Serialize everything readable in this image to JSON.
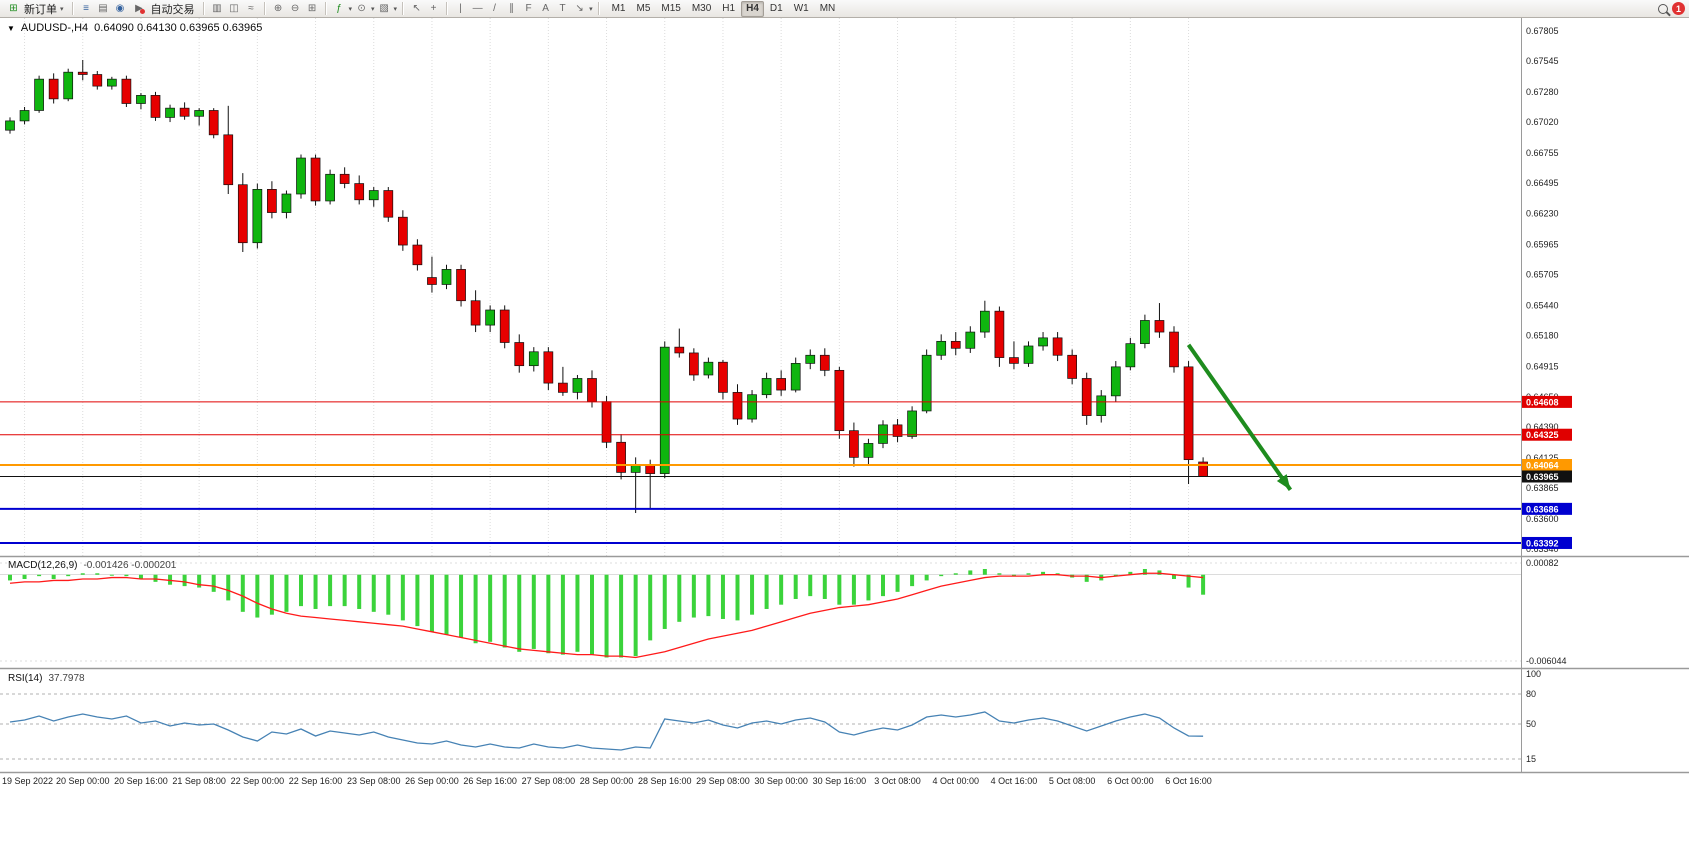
{
  "toolbar": {
    "new_order_label": "新订单",
    "autotrading_label": "自动交易",
    "timeframes": [
      "M1",
      "M5",
      "M15",
      "M30",
      "H1",
      "H4",
      "D1",
      "W1",
      "MN"
    ],
    "active_timeframe": "H4",
    "notification_badge": "1"
  },
  "icons": {
    "collapse": "▼",
    "caret": "▾",
    "new_order": "⊞",
    "market_watch": "≡",
    "navigator": "▤",
    "sound": "◉",
    "autotrading": "▶",
    "bar_chart": "▥",
    "candle_chart": "◫",
    "line_chart": "≈",
    "zoom_in": "⊕",
    "zoom_out": "⊖",
    "tile_windows": "⊞",
    "indicators": "ƒ",
    "periods_clock": "⊙",
    "templates": "▧",
    "cursor": "↖",
    "crosshair": "+",
    "vertical_line": "|",
    "horizontal_line": "—",
    "trendline": "/",
    "channel": "∥",
    "fibonacci": "F",
    "text_tool": "A",
    "label_tool": "T",
    "arrows_tool": "↘"
  },
  "chart_data": [
    {
      "type": "candlestick",
      "title": "AUDUSD-,H4",
      "ohlc_text": "0.64090 0.64130 0.63965 0.63965",
      "up_color": "#0fb50f",
      "down_color": "#e60000",
      "y_range": {
        "top": 0.67805,
        "bottom": 0.6334
      },
      "y_ticks": [
        "0.67805",
        "0.67545",
        "0.67280",
        "0.67020",
        "0.66755",
        "0.66495",
        "0.66230",
        "0.65965",
        "0.65705",
        "0.65440",
        "0.65180",
        "0.64915",
        "0.64650",
        "0.64390",
        "0.64125",
        "0.63865",
        "0.63600",
        "0.63340"
      ],
      "x_labels": [
        "19 Sep 2022",
        "20 Sep 00:00",
        "20 Sep 16:00",
        "21 Sep 08:00",
        "22 Sep 00:00",
        "22 Sep 16:00",
        "23 Sep 08:00",
        "26 Sep 00:00",
        "26 Sep 16:00",
        "27 Sep 08:00",
        "28 Sep 00:00",
        "28 Sep 16:00",
        "29 Sep 08:00",
        "30 Sep 00:00",
        "30 Sep 16:00",
        "3 Oct 08:00",
        "4 Oct 00:00",
        "4 Oct 16:00",
        "5 Oct 08:00",
        "6 Oct 00:00",
        "6 Oct 16:00"
      ],
      "x_label_indices": [
        1,
        5,
        9,
        13,
        17,
        21,
        25,
        29,
        33,
        37,
        41,
        45,
        49,
        53,
        57,
        61,
        65,
        69,
        73,
        77,
        81
      ],
      "levels": [
        {
          "price": "0.64608",
          "color": "#e00000",
          "width": 1
        },
        {
          "price": "0.64325",
          "color": "#e00000",
          "width": 1
        },
        {
          "price": "0.64064",
          "color": "#ff9900",
          "width": 2
        },
        {
          "price": "0.63965",
          "color": "#111111",
          "width": 1
        },
        {
          "price": "0.63686",
          "color": "#0000d0",
          "width": 2
        },
        {
          "price": "0.63392",
          "color": "#0000d0",
          "width": 2
        }
      ],
      "arrow": {
        "from_index": 81,
        "from_price": 0.651,
        "to_index": 88,
        "to_price": 0.6385,
        "color": "#1e8c1e"
      },
      "candles": [
        [
          0.6695,
          0.6706,
          0.6692,
          0.6703
        ],
        [
          0.6703,
          0.6715,
          0.67,
          0.6712
        ],
        [
          0.6712,
          0.6742,
          0.671,
          0.6739
        ],
        [
          0.6739,
          0.6744,
          0.6718,
          0.6722
        ],
        [
          0.6722,
          0.6748,
          0.672,
          0.6745
        ],
        [
          0.6745,
          0.67555,
          0.6738,
          0.6743
        ],
        [
          0.6743,
          0.6746,
          0.673,
          0.6733
        ],
        [
          0.6733,
          0.6741,
          0.673,
          0.6739
        ],
        [
          0.6739,
          0.6742,
          0.6715,
          0.6718
        ],
        [
          0.6718,
          0.6727,
          0.6713,
          0.6725
        ],
        [
          0.6725,
          0.6728,
          0.6703,
          0.6706
        ],
        [
          0.6706,
          0.6717,
          0.6702,
          0.6714
        ],
        [
          0.6714,
          0.6719,
          0.6704,
          0.6707
        ],
        [
          0.6707,
          0.6714,
          0.6699,
          0.6712
        ],
        [
          0.6712,
          0.6714,
          0.6688,
          0.6691
        ],
        [
          0.6691,
          0.6716,
          0.664,
          0.6648
        ],
        [
          0.6648,
          0.6658,
          0.659,
          0.6598
        ],
        [
          0.6598,
          0.6649,
          0.6593,
          0.6644
        ],
        [
          0.6644,
          0.6651,
          0.6619,
          0.6624
        ],
        [
          0.6624,
          0.6643,
          0.6619,
          0.664
        ],
        [
          0.664,
          0.6674,
          0.6636,
          0.6671
        ],
        [
          0.6671,
          0.6674,
          0.663,
          0.6634
        ],
        [
          0.6634,
          0.6661,
          0.6631,
          0.6657
        ],
        [
          0.6657,
          0.6663,
          0.6645,
          0.6649
        ],
        [
          0.6649,
          0.6656,
          0.6631,
          0.6635
        ],
        [
          0.6635,
          0.6646,
          0.6629,
          0.6643
        ],
        [
          0.6643,
          0.6646,
          0.6616,
          0.662
        ],
        [
          0.662,
          0.6626,
          0.6591,
          0.6596
        ],
        [
          0.6596,
          0.6601,
          0.6574,
          0.6579
        ],
        [
          0.6568,
          0.6586,
          0.6555,
          0.6562
        ],
        [
          0.6562,
          0.6579,
          0.6558,
          0.6575
        ],
        [
          0.6575,
          0.6579,
          0.6543,
          0.6548
        ],
        [
          0.6548,
          0.6557,
          0.6521,
          0.6527
        ],
        [
          0.6527,
          0.6544,
          0.6521,
          0.654
        ],
        [
          0.654,
          0.6544,
          0.6507,
          0.6512
        ],
        [
          0.6512,
          0.6519,
          0.6486,
          0.6492
        ],
        [
          0.6492,
          0.6508,
          0.6487,
          0.6504
        ],
        [
          0.6504,
          0.6508,
          0.6471,
          0.6477
        ],
        [
          0.6477,
          0.6491,
          0.6466,
          0.6469
        ],
        [
          0.6469,
          0.6484,
          0.6463,
          0.6481
        ],
        [
          0.6481,
          0.6488,
          0.6456,
          0.6461
        ],
        [
          0.6461,
          0.6466,
          0.6421,
          0.6426
        ],
        [
          0.6426,
          0.6433,
          0.6394,
          0.64
        ],
        [
          0.64,
          0.6413,
          0.6365,
          0.6406
        ],
        [
          0.6406,
          0.6411,
          0.6368,
          0.6399
        ],
        [
          0.6399,
          0.6513,
          0.6395,
          0.6508
        ],
        [
          0.6508,
          0.6524,
          0.6499,
          0.6503
        ],
        [
          0.6503,
          0.6507,
          0.6479,
          0.6484
        ],
        [
          0.6484,
          0.6499,
          0.6481,
          0.6495
        ],
        [
          0.6495,
          0.6497,
          0.6463,
          0.6469
        ],
        [
          0.6469,
          0.6476,
          0.6441,
          0.6446
        ],
        [
          0.6446,
          0.6471,
          0.6443,
          0.6467
        ],
        [
          0.6467,
          0.6486,
          0.6464,
          0.6481
        ],
        [
          0.6481,
          0.6488,
          0.6466,
          0.6471
        ],
        [
          0.6471,
          0.6499,
          0.6469,
          0.6494
        ],
        [
          0.6494,
          0.6506,
          0.6489,
          0.6501
        ],
        [
          0.6501,
          0.6507,
          0.6483,
          0.6488
        ],
        [
          0.6488,
          0.6491,
          0.6429,
          0.6436
        ],
        [
          0.6436,
          0.6443,
          0.6405,
          0.6413
        ],
        [
          0.6413,
          0.6429,
          0.6407,
          0.6425
        ],
        [
          0.6425,
          0.6445,
          0.6421,
          0.6441
        ],
        [
          0.6441,
          0.6446,
          0.6426,
          0.6431
        ],
        [
          0.6431,
          0.6457,
          0.6429,
          0.6453
        ],
        [
          0.6453,
          0.6506,
          0.6451,
          0.6501
        ],
        [
          0.6501,
          0.6519,
          0.6497,
          0.6513
        ],
        [
          0.6513,
          0.6521,
          0.6501,
          0.6507
        ],
        [
          0.6507,
          0.6526,
          0.6503,
          0.6521
        ],
        [
          0.6521,
          0.6548,
          0.6516,
          0.6539
        ],
        [
          0.6539,
          0.6543,
          0.6491,
          0.6499
        ],
        [
          0.6499,
          0.6513,
          0.6489,
          0.6494
        ],
        [
          0.6494,
          0.6513,
          0.6491,
          0.6509
        ],
        [
          0.6509,
          0.6521,
          0.6505,
          0.6516
        ],
        [
          0.6516,
          0.6521,
          0.6496,
          0.6501
        ],
        [
          0.6501,
          0.6506,
          0.6476,
          0.6481
        ],
        [
          0.6481,
          0.6486,
          0.6441,
          0.6449
        ],
        [
          0.6449,
          0.6471,
          0.6443,
          0.6466
        ],
        [
          0.6466,
          0.6496,
          0.6461,
          0.6491
        ],
        [
          0.6491,
          0.6516,
          0.6488,
          0.6511
        ],
        [
          0.6511,
          0.6536,
          0.6507,
          0.6531
        ],
        [
          0.6531,
          0.6546,
          0.6516,
          0.6521
        ],
        [
          0.6521,
          0.6526,
          0.6486,
          0.6491
        ],
        [
          0.6491,
          0.6496,
          0.639,
          0.6411
        ],
        [
          0.6409,
          0.6413,
          0.63965,
          0.63965
        ]
      ]
    },
    {
      "type": "bar",
      "label": "MACD(12,26,9)",
      "values_text": "-0.001426 -0.000201",
      "scale_top": "0.00082",
      "scale_bottom": "-0.006044",
      "bar_color": "#3bd33b",
      "signal_color": "#ff1a1a",
      "histogram": [
        -0.0004,
        -0.0003,
        -0.0001,
        -0.0003,
        -0.0001,
        0.0001,
        0.0001,
        0,
        -0.0001,
        -0.0003,
        -0.0005,
        -0.0007,
        -0.0008,
        -0.0009,
        -0.0012,
        -0.0018,
        -0.0026,
        -0.003,
        -0.0028,
        -0.0026,
        -0.0022,
        -0.0024,
        -0.0022,
        -0.0022,
        -0.0024,
        -0.0026,
        -0.0028,
        -0.0032,
        -0.0036,
        -0.004,
        -0.0042,
        -0.0044,
        -0.0048,
        -0.0047,
        -0.0051,
        -0.0054,
        -0.0052,
        -0.0055,
        -0.0056,
        -0.0054,
        -0.0056,
        -0.0058,
        -0.0058,
        -0.0057,
        -0.0046,
        -0.0038,
        -0.0033,
        -0.003,
        -0.0029,
        -0.0031,
        -0.0032,
        -0.0028,
        -0.0024,
        -0.0021,
        -0.0017,
        -0.0015,
        -0.0017,
        -0.0021,
        -0.0021,
        -0.0018,
        -0.0015,
        -0.0012,
        -0.0008,
        -0.0004,
        -0.0001,
        0.0001,
        0.0003,
        0.0004,
        0.0001,
        -0.0001,
        0.0001,
        0.0002,
        0.0001,
        -0.0002,
        -0.0005,
        -0.0004,
        -0.0001,
        0.0002,
        0.0004,
        0.0003,
        -0.0003,
        -0.0009,
        -0.0014
      ],
      "signal": [
        -0.0006,
        -0.0005,
        -0.0005,
        -0.0004,
        -0.0004,
        -0.0003,
        -0.0003,
        -0.0002,
        -0.0002,
        -0.0003,
        -0.0003,
        -0.0004,
        -0.0005,
        -0.0007,
        -0.0008,
        -0.0011,
        -0.0015,
        -0.002,
        -0.0024,
        -0.0027,
        -0.0029,
        -0.003,
        -0.0031,
        -0.0032,
        -0.0033,
        -0.0034,
        -0.0035,
        -0.0036,
        -0.0038,
        -0.004,
        -0.0042,
        -0.0044,
        -0.0046,
        -0.0048,
        -0.005,
        -0.0052,
        -0.0053,
        -0.0054,
        -0.0055,
        -0.0056,
        -0.0056,
        -0.0057,
        -0.0057,
        -0.0058,
        -0.0056,
        -0.0054,
        -0.0051,
        -0.0048,
        -0.0045,
        -0.0043,
        -0.0041,
        -0.0039,
        -0.0036,
        -0.0033,
        -0.003,
        -0.0027,
        -0.0025,
        -0.0023,
        -0.0022,
        -0.0021,
        -0.0019,
        -0.0017,
        -0.0014,
        -0.0011,
        -0.0008,
        -0.0006,
        -0.0004,
        -0.0002,
        -0.0001,
        -0.0001,
        -0.0001,
        0,
        0,
        -0.0001,
        -0.0001,
        -0.0002,
        -0.0001,
        0,
        0.0001,
        0.0001,
        0,
        -0.0001,
        -0.0002
      ]
    },
    {
      "type": "line",
      "label": "RSI(14)",
      "value_text": "37.7978",
      "line_color": "#4682b4",
      "y_ticks": [
        "100",
        "80",
        "50",
        "15"
      ],
      "dashed_levels": [
        80,
        50,
        15
      ],
      "values": [
        52,
        54,
        58,
        53,
        57,
        60,
        57,
        55,
        58,
        51,
        53,
        48,
        51,
        49,
        50,
        44,
        37,
        33,
        42,
        40,
        45,
        38,
        43,
        41,
        39,
        42,
        37,
        34,
        31,
        30,
        33,
        29,
        27,
        30,
        27,
        26,
        30,
        27,
        26,
        29,
        26,
        25,
        24,
        27,
        26,
        55,
        53,
        51,
        54,
        49,
        46,
        51,
        53,
        50,
        54,
        56,
        52,
        42,
        39,
        43,
        46,
        44,
        49,
        57,
        59,
        57,
        59,
        62,
        53,
        51,
        54,
        56,
        53,
        48,
        43,
        48,
        53,
        57,
        60,
        56,
        46,
        38,
        37.8
      ]
    }
  ]
}
